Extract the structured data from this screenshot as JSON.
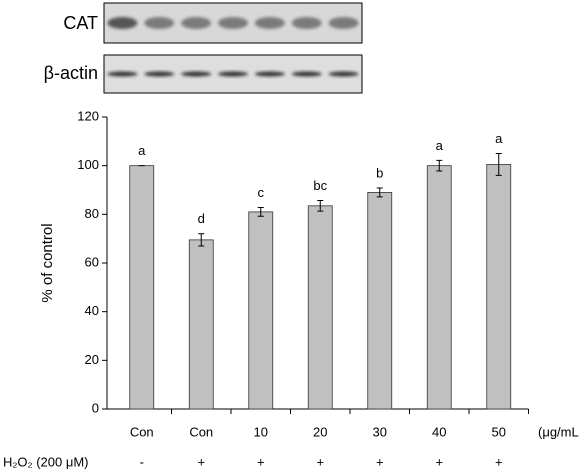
{
  "blots": [
    "CAT",
    "β-actin"
  ],
  "chart_data": {
    "type": "bar",
    "y_label": "% of control",
    "categories": [
      "Con",
      "Con",
      "10",
      "20",
      "30",
      "40",
      "50"
    ],
    "category_unit": "(μg/mL)",
    "values": [
      100,
      69.5,
      81,
      83.5,
      89,
      100,
      100.5
    ],
    "errors": [
      0,
      2.5,
      1.8,
      2.2,
      1.8,
      2.2,
      4.5
    ],
    "significance": [
      "a",
      "d",
      "c",
      "bc",
      "b",
      "a",
      "a"
    ],
    "treatment_label": "H₂O₂ (200 μM)",
    "treatment": [
      "-",
      "+",
      "+",
      "+",
      "+",
      "+",
      "+"
    ],
    "color": "#c0c0c0",
    "ylim": [
      0,
      120
    ],
    "yticks": [
      0,
      20,
      40,
      60,
      80,
      100,
      120
    ]
  }
}
